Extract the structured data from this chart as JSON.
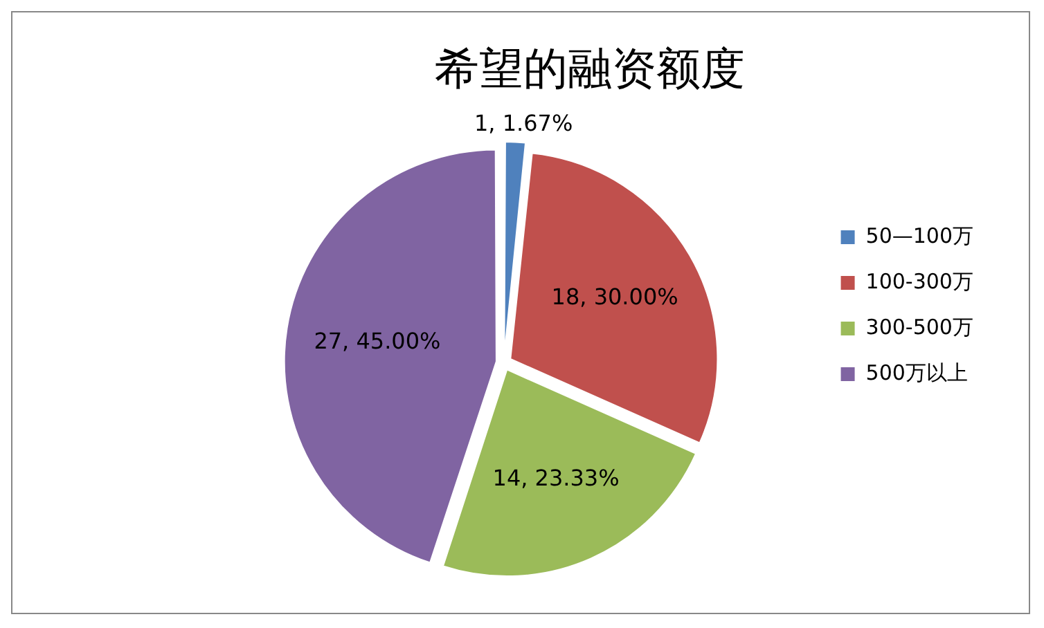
{
  "chart_data": {
    "type": "pie",
    "title": "希望的融资额度",
    "categories": [
      "50—100万",
      "100-300万",
      "300-500万",
      "500万以上"
    ],
    "values": [
      1,
      18,
      14,
      27
    ],
    "value_labels": [
      "1, 1.67%",
      "18, 30.00%",
      "14, 23.33%",
      "27, 45.00%"
    ],
    "colors": [
      "#4f81bd",
      "#c0504d",
      "#9bbb59",
      "#8064a2"
    ],
    "legend": "right"
  }
}
